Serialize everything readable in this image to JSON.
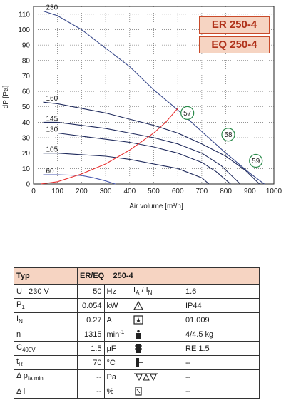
{
  "chart_data": {
    "type": "line",
    "xlabel": "Air volume [m³/h]",
    "ylabel": "dP [Pa]",
    "xlim": [
      0,
      1000
    ],
    "ylim": [
      0,
      115
    ],
    "x_ticks": [
      "0",
      "100",
      "200",
      "300",
      "400",
      "500",
      "600",
      "700",
      "800",
      "900",
      "1000"
    ],
    "y_ticks": [
      "0",
      "10",
      "20",
      "30",
      "40",
      "50",
      "60",
      "70",
      "80",
      "90",
      "100",
      "110"
    ],
    "grid": true,
    "series": [
      {
        "name": "230",
        "color": "#3a4a8c",
        "points": [
          [
            40,
            112
          ],
          [
            100,
            109
          ],
          [
            200,
            100
          ],
          [
            300,
            88
          ],
          [
            400,
            76
          ],
          [
            500,
            61
          ],
          [
            600,
            48
          ],
          [
            700,
            34
          ],
          [
            800,
            20
          ],
          [
            900,
            7
          ],
          [
            960,
            0
          ]
        ]
      },
      {
        "name": "160",
        "color": "#1f2a5c",
        "points": [
          [
            40,
            53
          ],
          [
            100,
            52
          ],
          [
            200,
            49
          ],
          [
            300,
            46
          ],
          [
            400,
            42
          ],
          [
            500,
            38
          ],
          [
            600,
            33
          ],
          [
            700,
            26
          ],
          [
            800,
            18
          ],
          [
            880,
            9
          ],
          [
            940,
            0
          ]
        ]
      },
      {
        "name": "145",
        "color": "#1f2a5c",
        "points": [
          [
            40,
            40
          ],
          [
            100,
            40
          ],
          [
            200,
            38
          ],
          [
            300,
            36
          ],
          [
            400,
            33
          ],
          [
            500,
            30
          ],
          [
            600,
            26
          ],
          [
            700,
            20
          ],
          [
            780,
            12
          ],
          [
            860,
            0
          ]
        ]
      },
      {
        "name": "130",
        "color": "#1f2a5c",
        "points": [
          [
            40,
            33
          ],
          [
            100,
            33
          ],
          [
            200,
            31
          ],
          [
            300,
            29
          ],
          [
            400,
            27
          ],
          [
            500,
            24
          ],
          [
            600,
            20
          ],
          [
            700,
            14
          ],
          [
            760,
            8
          ],
          [
            820,
            0
          ]
        ]
      },
      {
        "name": "105",
        "color": "#1f2a5c",
        "points": [
          [
            40,
            20
          ],
          [
            100,
            20
          ],
          [
            200,
            19
          ],
          [
            300,
            18
          ],
          [
            400,
            16
          ],
          [
            500,
            13
          ],
          [
            600,
            10
          ],
          [
            700,
            4
          ],
          [
            730,
            0
          ]
        ]
      },
      {
        "name": "60",
        "color": "#4a5ab0",
        "points": [
          [
            40,
            6
          ],
          [
            100,
            6
          ],
          [
            200,
            5.5
          ],
          [
            250,
            4
          ],
          [
            300,
            2
          ],
          [
            340,
            0
          ]
        ]
      },
      {
        "name": "system",
        "color": "#e83030",
        "points": [
          [
            30,
            0
          ],
          [
            100,
            1.5
          ],
          [
            200,
            6.5
          ],
          [
            300,
            13
          ],
          [
            400,
            22
          ],
          [
            500,
            33
          ],
          [
            550,
            40
          ],
          [
            600,
            49
          ]
        ]
      }
    ],
    "markers": [
      {
        "label": "57",
        "x": 640,
        "y": 46
      },
      {
        "label": "58",
        "x": 810,
        "y": 32
      },
      {
        "label": "59",
        "x": 925,
        "y": 15
      }
    ],
    "models": [
      "ER 250-4",
      "EQ 250-4"
    ]
  },
  "table": {
    "header": {
      "typ": "Typ",
      "model_label": "ER/EQ",
      "model_value": "250-4"
    },
    "rows": [
      {
        "sym": "U",
        "sym_extra": "230   V",
        "value": "50",
        "unit": "Hz",
        "right_sym": "I",
        "right_sub": "A",
        "right_sep": " / I",
        "right_sub2": "N",
        "right_value": "1.6"
      },
      {
        "sym": "P",
        "sub": "1",
        "value": "0.054",
        "unit": "kW",
        "icon": "warning-triangle-icon",
        "right_value": "IP44"
      },
      {
        "sym": "I",
        "sub": "N",
        "value": "0.27",
        "unit": "A",
        "icon": "star-box-icon",
        "right_value": "01.009"
      },
      {
        "sym": "n",
        "value": "1315",
        "unit": "min",
        "unit_sup": "-1",
        "icon": "weight-icon",
        "right_value": "4/4.5 kg"
      },
      {
        "sym": "C",
        "sub": "400V",
        "value": "1.5",
        "unit": "μF",
        "icon": "motor-protection-icon",
        "right_value": "RE 1.5"
      },
      {
        "sym": "t",
        "sub": "R",
        "value": "70",
        "unit": "°C",
        "icon": "controller-icon",
        "right_value": "--"
      },
      {
        "sym": "Δ p",
        "sub": "fa min",
        "value": "--",
        "unit": "Pa",
        "icon": "airflow-triangles-icon",
        "right_value": "--"
      },
      {
        "sym": "Δ l",
        "value": "--",
        "unit": "%",
        "icon": "mounting-icon",
        "right_value": "--"
      }
    ]
  }
}
